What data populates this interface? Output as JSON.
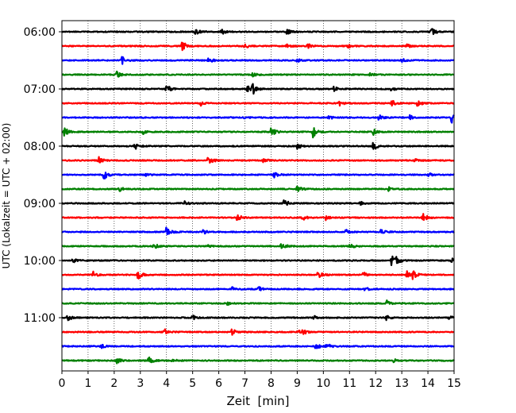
{
  "chart_data": {
    "type": "line",
    "title": "",
    "xlabel": "Zeit  [min]",
    "ylabel": "UTC (Lokalzeit = UTC + 02:00)",
    "xlim": [
      0,
      15
    ],
    "x_ticks": [
      "0",
      "1",
      "2",
      "3",
      "4",
      "5",
      "6",
      "7",
      "8",
      "9",
      "10",
      "11",
      "12",
      "13",
      "14",
      "15"
    ],
    "y_tick_labels": [
      "06:00",
      "07:00",
      "08:00",
      "09:00",
      "10:00",
      "11:00"
    ],
    "trace_interval_min": 15,
    "start_time": "06:00",
    "grid": "vertical dotted",
    "series_colors": [
      "#000000",
      "#ff0000",
      "#0000ff",
      "#008000"
    ],
    "traces": [
      {
        "start": "06:00",
        "color": "#000000",
        "events": [
          [
            5.1,
            0.6
          ],
          [
            6.1,
            0.5
          ],
          [
            8.6,
            0.5
          ],
          [
            14.1,
            1.0
          ]
        ]
      },
      {
        "start": "06:15",
        "color": "#ff0000",
        "events": [
          [
            4.6,
            1.0
          ],
          [
            7.0,
            0.45
          ],
          [
            8.6,
            0.4
          ],
          [
            9.4,
            0.45
          ],
          [
            10.9,
            0.4
          ],
          [
            13.2,
            0.35
          ]
        ]
      },
      {
        "start": "06:30",
        "color": "#0000ff",
        "events": [
          [
            2.3,
            0.7
          ],
          [
            5.6,
            0.7
          ],
          [
            9.0,
            0.35
          ],
          [
            13.0,
            0.35
          ]
        ]
      },
      {
        "start": "06:45",
        "color": "#008000",
        "events": [
          [
            2.1,
            0.5
          ],
          [
            7.3,
            0.35
          ],
          [
            11.8,
            0.35
          ]
        ]
      },
      {
        "start": "07:00",
        "color": "#000000",
        "events": [
          [
            4.0,
            0.8
          ],
          [
            7.3,
            1.0
          ],
          [
            7.1,
            0.6
          ],
          [
            10.4,
            0.45
          ],
          [
            12.6,
            0.35
          ]
        ]
      },
      {
        "start": "07:15",
        "color": "#ff0000",
        "events": [
          [
            5.3,
            0.45
          ],
          [
            10.6,
            0.45
          ],
          [
            12.6,
            0.7
          ],
          [
            13.6,
            0.6
          ]
        ]
      },
      {
        "start": "07:30",
        "color": "#0000ff",
        "events": [
          [
            6.9,
            0.4
          ],
          [
            10.2,
            0.4
          ],
          [
            12.1,
            0.7
          ],
          [
            13.3,
            0.4
          ],
          [
            14.9,
            1.0
          ]
        ]
      },
      {
        "start": "07:45",
        "color": "#008000",
        "events": [
          [
            0.1,
            1.0
          ],
          [
            8.0,
            0.9
          ],
          [
            9.6,
            1.0
          ],
          [
            11.9,
            0.6
          ],
          [
            3.1,
            0.35
          ]
        ]
      },
      {
        "start": "08:00",
        "color": "#000000",
        "events": [
          [
            2.8,
            0.6
          ],
          [
            9.0,
            0.55
          ],
          [
            11.9,
            0.8
          ]
        ]
      },
      {
        "start": "08:15",
        "color": "#ff0000",
        "events": [
          [
            1.4,
            0.7
          ],
          [
            5.6,
            1.0
          ],
          [
            7.7,
            0.5
          ],
          [
            13.5,
            0.35
          ]
        ]
      },
      {
        "start": "08:30",
        "color": "#0000ff",
        "events": [
          [
            1.6,
            0.9
          ],
          [
            3.2,
            0.45
          ],
          [
            8.1,
            0.6
          ],
          [
            14.0,
            0.4
          ]
        ]
      },
      {
        "start": "08:45",
        "color": "#008000",
        "events": [
          [
            2.2,
            0.45
          ],
          [
            9.0,
            0.7
          ],
          [
            12.5,
            0.4
          ]
        ]
      },
      {
        "start": "09:00",
        "color": "#000000",
        "events": [
          [
            4.7,
            0.45
          ],
          [
            8.5,
            0.8
          ],
          [
            11.4,
            0.4
          ]
        ]
      },
      {
        "start": "09:15",
        "color": "#ff0000",
        "events": [
          [
            6.7,
            0.7
          ],
          [
            9.2,
            0.5
          ],
          [
            10.1,
            0.45
          ],
          [
            13.8,
            1.0
          ]
        ]
      },
      {
        "start": "09:30",
        "color": "#0000ff",
        "events": [
          [
            4.0,
            1.0
          ],
          [
            5.4,
            0.4
          ],
          [
            10.8,
            0.6
          ],
          [
            12.2,
            0.5
          ]
        ]
      },
      {
        "start": "09:45",
        "color": "#008000",
        "events": [
          [
            3.5,
            0.6
          ],
          [
            5.5,
            0.35
          ],
          [
            8.4,
            1.0
          ],
          [
            11.0,
            0.7
          ]
        ]
      },
      {
        "start": "10:00",
        "color": "#000000",
        "events": [
          [
            0.4,
            0.45
          ],
          [
            12.6,
            1.0
          ],
          [
            12.8,
            0.7
          ],
          [
            14.9,
            0.45
          ]
        ]
      },
      {
        "start": "10:15",
        "color": "#ff0000",
        "events": [
          [
            1.2,
            0.6
          ],
          [
            2.9,
            1.0
          ],
          [
            9.8,
            0.8
          ],
          [
            11.5,
            0.6
          ],
          [
            13.4,
            1.0
          ],
          [
            13.2,
            0.6
          ]
        ]
      },
      {
        "start": "10:30",
        "color": "#0000ff",
        "events": [
          [
            6.5,
            0.4
          ],
          [
            7.5,
            0.6
          ],
          [
            11.6,
            0.4
          ]
        ]
      },
      {
        "start": "10:45",
        "color": "#008000",
        "events": [
          [
            6.3,
            0.35
          ],
          [
            12.4,
            0.6
          ]
        ]
      },
      {
        "start": "11:00",
        "color": "#000000",
        "events": [
          [
            0.2,
            0.6
          ],
          [
            5.0,
            0.4
          ],
          [
            9.6,
            0.4
          ],
          [
            12.4,
            0.45
          ],
          [
            14.8,
            0.5
          ]
        ]
      },
      {
        "start": "11:15",
        "color": "#ff0000",
        "events": [
          [
            3.9,
            0.6
          ],
          [
            6.5,
            0.6
          ],
          [
            9.2,
            0.6
          ],
          [
            9.0,
            0.4
          ]
        ]
      },
      {
        "start": "11:30",
        "color": "#0000ff",
        "events": [
          [
            1.5,
            0.35
          ],
          [
            9.7,
            0.6
          ],
          [
            10.1,
            0.7
          ]
        ]
      },
      {
        "start": "11:45",
        "color": "#008000",
        "events": [
          [
            2.1,
            0.6
          ],
          [
            3.3,
            0.8
          ],
          [
            4.2,
            0.4
          ],
          [
            12.7,
            0.4
          ]
        ]
      }
    ]
  }
}
